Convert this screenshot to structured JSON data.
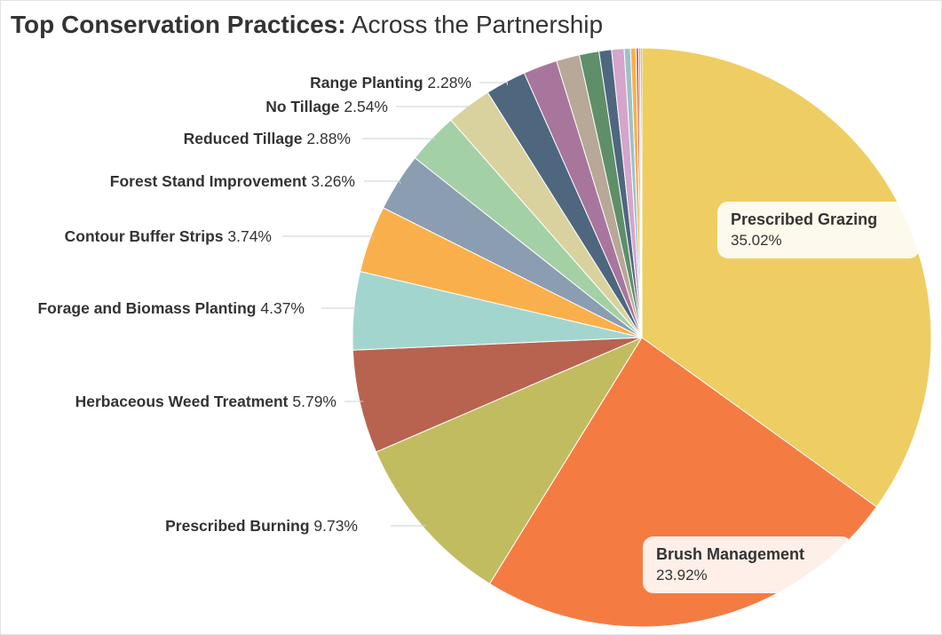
{
  "title": {
    "bold_text": "Top Conservation Practices:",
    "light_text": "Across the Partnership"
  },
  "chart_data": {
    "type": "pie",
    "title": "Top Conservation Practices: Across the Partnership",
    "unit": "%",
    "slices": [
      {
        "name": "Prescribed Grazing",
        "value": 35.02,
        "label": "35.02%",
        "color": "#EECD62",
        "label_style": "inside-box"
      },
      {
        "name": "Brush Management",
        "value": 23.92,
        "label": "23.92%",
        "color": "#F47C43",
        "label_style": "inside-box"
      },
      {
        "name": "Prescribed Burning",
        "value": 9.73,
        "label": "9.73%",
        "color": "#C1BC5F",
        "label_style": "outside"
      },
      {
        "name": "Herbaceous Weed Treatment",
        "value": 5.79,
        "label": "5.79%",
        "color": "#B86350",
        "label_style": "outside"
      },
      {
        "name": "Forage and Biomass Planting",
        "value": 4.37,
        "label": "4.37%",
        "color": "#A3D5CF",
        "label_style": "outside"
      },
      {
        "name": "Contour Buffer Strips",
        "value": 3.74,
        "label": "3.74%",
        "color": "#F9B04C",
        "label_style": "outside"
      },
      {
        "name": "Forest Stand Improvement",
        "value": 3.26,
        "label": "3.26%",
        "color": "#8A9DB1",
        "label_style": "outside"
      },
      {
        "name": "Reduced Tillage",
        "value": 2.88,
        "label": "2.88%",
        "color": "#A4D0A6",
        "label_style": "outside"
      },
      {
        "name": "No Tillage",
        "value": 2.54,
        "label": "2.54%",
        "color": "#D9D29F",
        "label_style": "outside"
      },
      {
        "name": "Range Planting",
        "value": 2.28,
        "label": "2.28%",
        "color": "#4E677F",
        "label_style": "outside"
      },
      {
        "name": "",
        "value": 1.9,
        "label": "",
        "color": "#A8769D",
        "label_style": "none"
      },
      {
        "name": "",
        "value": 1.3,
        "label": "",
        "color": "#B7A897",
        "label_style": "none"
      },
      {
        "name": "",
        "value": 1.1,
        "label": "",
        "color": "#5F8F68",
        "label_style": "none"
      },
      {
        "name": "",
        "value": 0.7,
        "label": "",
        "color": "#4E677F",
        "label_style": "none"
      },
      {
        "name": "",
        "value": 0.7,
        "label": "",
        "color": "#D5A5CB",
        "label_style": "none"
      },
      {
        "name": "",
        "value": 0.35,
        "label": "",
        "color": "#9BC2C9",
        "label_style": "none"
      },
      {
        "name": "",
        "value": 0.3,
        "label": "",
        "color": "#F9B04C",
        "label_style": "none"
      },
      {
        "name": "",
        "value": 0.15,
        "label": "",
        "color": "#C56A4C",
        "label_style": "none"
      },
      {
        "name": "",
        "value": 0.1,
        "label": "",
        "color": "#8A9DB1",
        "label_style": "none"
      },
      {
        "name": "",
        "value": 0.08,
        "label": "",
        "color": "#5F8F68",
        "label_style": "none"
      }
    ],
    "start_angle": "12 o'clock",
    "direction": "clockwise"
  }
}
